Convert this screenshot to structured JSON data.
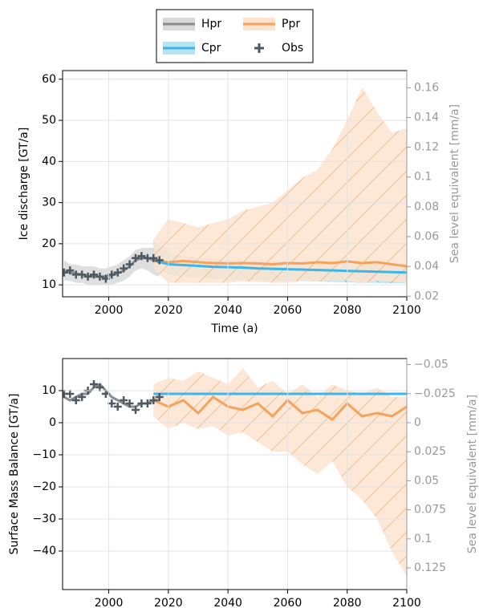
{
  "chart_data": [
    {
      "type": "line",
      "xlabel": "Time (a)",
      "ylabel": "Ice discharge [GT/a]",
      "y2label": "Sea level equivalent [mm/a]",
      "xlim": [
        1984.5,
        2100
      ],
      "ylim": [
        7.1,
        62.1
      ],
      "y2lim": [
        0.0196,
        0.1715
      ],
      "xticks": [
        2000,
        2020,
        2040,
        2060,
        2080,
        2100
      ],
      "yticks": [
        10,
        20,
        30,
        40,
        50,
        60
      ],
      "y2ticks": [
        0.02,
        0.04,
        0.06,
        0.08,
        0.1,
        0.12,
        0.14,
        0.16
      ],
      "grid": true,
      "legend": "upper center",
      "series": [
        {
          "name": "Hpr",
          "color": "#8c8c8c",
          "band_color": "#d9d9d9",
          "x": [
            1985,
            1987,
            1989,
            1991,
            1993,
            1995,
            1997,
            1999,
            2001,
            2003,
            2005,
            2007,
            2009,
            2011,
            2013,
            2015,
            2017
          ],
          "values": [
            13.2,
            13,
            12.8,
            12.5,
            12.2,
            12,
            12,
            12,
            12.3,
            12.8,
            13.5,
            14.5,
            16,
            16.5,
            16.5,
            16,
            15.5
          ],
          "upper": [
            16,
            15,
            15,
            14.5,
            14.5,
            14.5,
            14,
            14,
            14.5,
            15,
            16,
            17,
            18.5,
            19,
            19,
            19,
            19
          ],
          "lower": [
            11,
            11,
            10.5,
            10.5,
            10,
            10,
            10,
            10,
            10,
            10.5,
            11,
            12,
            13.5,
            14,
            13.5,
            12.5,
            12
          ]
        },
        {
          "name": "Cpr",
          "color": "#3bb5ea",
          "band_color": "#b7e2f0",
          "hatch": "x",
          "x": [
            2015,
            2020,
            2025,
            2030,
            2035,
            2040,
            2045,
            2050,
            2055,
            2060,
            2065,
            2070,
            2075,
            2080,
            2085,
            2090,
            2095,
            2100
          ],
          "values": [
            16,
            15,
            14.8,
            14.6,
            14.4,
            14.3,
            14.2,
            14,
            13.9,
            13.8,
            13.7,
            13.6,
            13.5,
            13.4,
            13.3,
            13.2,
            13.1,
            13
          ],
          "upper": [
            21,
            18,
            17,
            16.5,
            16.3,
            16.1,
            16,
            15.9,
            15.8,
            15.7,
            15.6,
            15.5,
            15.4,
            15.3,
            15.2,
            15.1,
            15,
            15
          ],
          "lower": [
            15,
            12.5,
            12,
            11.7,
            11.5,
            11.3,
            11.2,
            11.1,
            11,
            11,
            10.9,
            10.8,
            10.7,
            10.6,
            10.5,
            10.5,
            10.4,
            10.4
          ]
        },
        {
          "name": "Ppr",
          "color": "#f5a25d",
          "band_color": "#fde3cf",
          "hatch": "/",
          "x": [
            2015,
            2020,
            2025,
            2030,
            2035,
            2040,
            2045,
            2050,
            2055,
            2060,
            2065,
            2070,
            2075,
            2080,
            2085,
            2090,
            2095,
            2100
          ],
          "values": [
            16,
            15.5,
            15.8,
            15.5,
            15.3,
            15.2,
            15.3,
            15.2,
            15,
            15.3,
            15.2,
            15.5,
            15.3,
            15.7,
            15.3,
            15.5,
            15,
            14.5
          ],
          "upper": [
            21,
            26,
            25,
            24,
            25,
            26,
            28,
            29,
            30,
            33,
            36,
            38,
            43,
            50,
            58,
            52,
            47,
            48
          ],
          "lower": [
            14,
            10.5,
            10.5,
            10.5,
            10.5,
            10.5,
            10.8,
            10.7,
            10.5,
            10.5,
            11,
            10.8,
            11,
            11,
            10.5,
            11,
            10.8,
            10.5
          ]
        },
        {
          "name": "Obs",
          "color": "#4d5a63",
          "marker": "+",
          "x": [
            1985,
            1987,
            1989,
            1991,
            1993,
            1995,
            1997,
            1999,
            2001,
            2003,
            2005,
            2007,
            2009,
            2011,
            2013,
            2015,
            2017
          ],
          "values": [
            13,
            13.5,
            12.5,
            12.5,
            12,
            12.5,
            12,
            11.5,
            12.5,
            13,
            14,
            15,
            16.5,
            17,
            16.5,
            16.5,
            16
          ]
        }
      ]
    },
    {
      "type": "line",
      "ylabel": "Surface Mass Balance [GT/a]",
      "y2label": "Sea level equivalent [mm/a]",
      "xlim": [
        1984.5,
        2100
      ],
      "ylim": [
        -52,
        20
      ],
      "y2lim": [
        0.1436,
        -0.0552
      ],
      "xticks": [
        2000,
        2020,
        2040,
        2060,
        2080,
        2100
      ],
      "yticks": [
        {
          "value": -40,
          "label": "−40"
        },
        {
          "value": -30,
          "label": "−30"
        },
        {
          "value": -20,
          "label": "−20"
        },
        {
          "value": -10,
          "label": "−10"
        },
        0,
        10
      ],
      "y2ticks": [
        {
          "value": -0.05,
          "label": "−0.05"
        },
        {
          "value": -0.025,
          "label": "−0.025"
        },
        0,
        0.025,
        0.05,
        0.075,
        0.1,
        0.125
      ],
      "grid": true,
      "series": [
        {
          "color": "#8c8c8c",
          "x": [
            1985,
            1987,
            1989,
            1991,
            1993,
            1995,
            1997,
            1999,
            2001,
            2003,
            2005,
            2007,
            2009,
            2011,
            2013,
            2015,
            2017
          ],
          "values": [
            8,
            7,
            8,
            9,
            9,
            11,
            12,
            10,
            8,
            7,
            6,
            5,
            5,
            6,
            6,
            7,
            7
          ]
        },
        {
          "color": "#3bb5ea",
          "x": [
            2015,
            2020,
            2025,
            2030,
            2035,
            2040,
            2045,
            2050,
            2055,
            2060,
            2065,
            2070,
            2075,
            2080,
            2085,
            2090,
            2095,
            2100
          ],
          "values": [
            9,
            9,
            9,
            9,
            9,
            9,
            9,
            9,
            9,
            9,
            9,
            9,
            9,
            9,
            9,
            9,
            9,
            9
          ]
        },
        {
          "color": "#f5a25d",
          "band_color": "#fde3cf",
          "hatch": "/",
          "x": [
            2015,
            2020,
            2025,
            2030,
            2035,
            2040,
            2045,
            2050,
            2055,
            2060,
            2065,
            2070,
            2075,
            2080,
            2085,
            2090,
            2095,
            2100
          ],
          "values": [
            7,
            5,
            7,
            3,
            8,
            5,
            4,
            6,
            2,
            7,
            3,
            4,
            1,
            6,
            2,
            3,
            2,
            5
          ],
          "upper": [
            12,
            14,
            13,
            16,
            14,
            12,
            17,
            11,
            13,
            9,
            12,
            8,
            12,
            10,
            9,
            11,
            8,
            8
          ],
          "lower": [
            2,
            -2,
            0,
            -2,
            -1,
            -4,
            -3,
            -6,
            -9,
            -9,
            -13,
            -16,
            -12,
            -20,
            -24,
            -30,
            -40,
            -48
          ]
        },
        {
          "color": "#4d5a63",
          "marker": "+",
          "x": [
            1985,
            1987,
            1989,
            1991,
            1993,
            1995,
            1997,
            1999,
            2001,
            2003,
            2005,
            2007,
            2009,
            2011,
            2013,
            2015,
            2017
          ],
          "values": [
            9,
            9,
            7,
            8,
            10,
            12,
            11,
            9,
            6,
            5,
            7,
            6,
            4,
            6,
            6,
            7,
            8
          ]
        }
      ]
    }
  ]
}
